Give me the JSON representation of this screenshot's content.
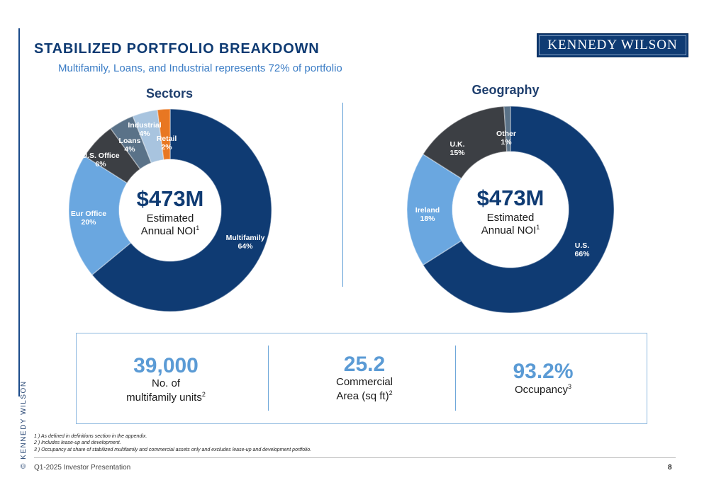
{
  "header": {
    "title": "STABILIZED PORTFOLIO BREAKDOWN",
    "subtitle": "Multifamily, Loans, and Industrial represents 72% of portfolio",
    "logo": "KENNEDY WILSON"
  },
  "side_text": "© KENNEDY WILSON",
  "colors": {
    "navy": "#0f3b73",
    "light_blue": "#6aa7e0",
    "dark_gray": "#3c3f44",
    "slate": "#5a7288",
    "pale_blue": "#a8c4df",
    "orange": "#e87722"
  },
  "chart_data": [
    {
      "type": "pie",
      "title": "Sectors",
      "center_value": "$473M",
      "center_label_1": "Estimated",
      "center_label_2": "Annual NOI",
      "center_sup": "1",
      "slices": [
        {
          "label": "Multifamily",
          "value": 64,
          "value_text": "64%",
          "color": "#0f3b73"
        },
        {
          "label": "Eur Office",
          "value": 20,
          "value_text": "20%",
          "color": "#6aa7e0"
        },
        {
          "label": "U.S. Office",
          "value": 6,
          "value_text": "6%",
          "color": "#3c3f44"
        },
        {
          "label": "Loans",
          "value": 4,
          "value_text": "4%",
          "color": "#5a7288"
        },
        {
          "label": "Industrial",
          "value": 4,
          "value_text": "4%",
          "color": "#a8c4df"
        },
        {
          "label": "Retail",
          "value": 2,
          "value_text": "2%",
          "color": "#e87722"
        }
      ]
    },
    {
      "type": "pie",
      "title": "Geography",
      "center_value": "$473M",
      "center_label_1": "Estimated",
      "center_label_2": "Annual NOI",
      "center_sup": "1",
      "slices": [
        {
          "label": "U.S.",
          "value": 66,
          "value_text": "66%",
          "color": "#0f3b73"
        },
        {
          "label": "Ireland",
          "value": 18,
          "value_text": "18%",
          "color": "#6aa7e0"
        },
        {
          "label": "U.K.",
          "value": 15,
          "value_text": "15%",
          "color": "#3c3f44"
        },
        {
          "label": "Other",
          "value": 1,
          "value_text": "1%",
          "color": "#5a7288"
        }
      ]
    }
  ],
  "stats": [
    {
      "value": "39,000",
      "label_1": "No. of",
      "label_2": "multifamily units",
      "sup": "2"
    },
    {
      "value": "25.2",
      "label_1": "Commercial",
      "label_2": "Area (sq ft)",
      "sup": "2"
    },
    {
      "value": "93.2%",
      "label_1": "",
      "label_2": "Occupancy",
      "sup": "3"
    }
  ],
  "footnotes": [
    "1 ) As defined in definitions section in the appendix.",
    "2 ) Includes lease-up and development.",
    "3 ) Occupancy at share of stabilized multifamily and commercial assets only and excludes lease-up and development portfolio."
  ],
  "footer": {
    "text": "Q1-2025 Investor Presentation",
    "page": "8"
  }
}
